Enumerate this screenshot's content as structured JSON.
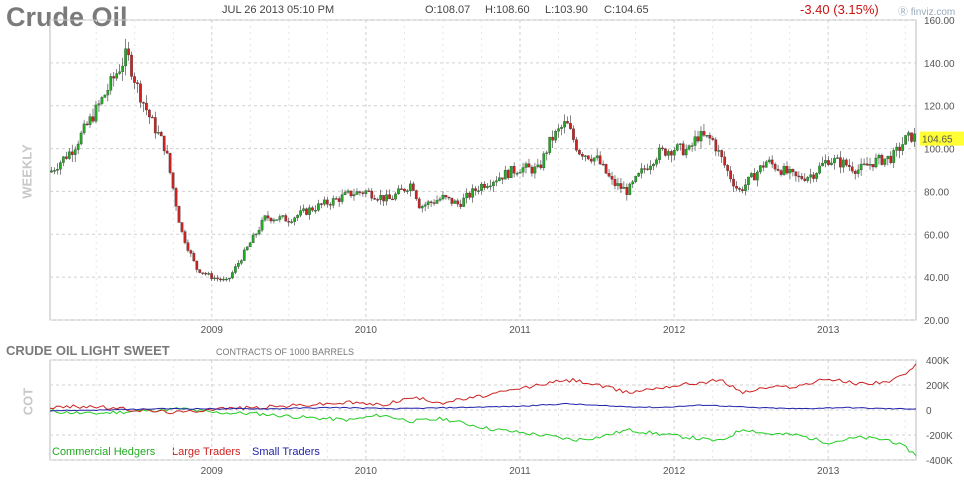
{
  "header": {
    "title": "Crude Oil",
    "datetime": "JUL 26 2013 05:10 PM",
    "open": "O:108.07",
    "high": "H:108.60",
    "low": "L:103.90",
    "close": "C:104.65",
    "change": "-3.40 (3.15%)",
    "brand": "finviz.com"
  },
  "colors": {
    "up": "#22aa22",
    "down": "#cc2222",
    "commercial": "#22cc22",
    "large": "#cc2222",
    "small": "#2222aa",
    "grid": "#d0d0d0",
    "last_bg": "#ffff33"
  },
  "chart_data": [
    {
      "type": "candlestick",
      "period_label": "WEEKLY",
      "last_label": "104.65",
      "ylim": [
        20,
        160
      ],
      "y_ticks": [
        "160.00",
        "140.00",
        "120.00",
        "100.00",
        "80.00",
        "60.00",
        "40.00",
        "20.00"
      ],
      "x_ticks": [
        "2009",
        "2010",
        "2011",
        "2012",
        "2013"
      ],
      "x_range": [
        2007.95,
        2013.57
      ],
      "price_path": [
        [
          2007.95,
          89
        ],
        [
          2008.1,
          100
        ],
        [
          2008.25,
          118
        ],
        [
          2008.38,
          135
        ],
        [
          2008.45,
          144
        ],
        [
          2008.52,
          128
        ],
        [
          2008.6,
          114
        ],
        [
          2008.7,
          100
        ],
        [
          2008.8,
          62
        ],
        [
          2008.9,
          44
        ],
        [
          2009.0,
          40
        ],
        [
          2009.1,
          38
        ],
        [
          2009.2,
          50
        ],
        [
          2009.35,
          68
        ],
        [
          2009.5,
          67
        ],
        [
          2009.65,
          72
        ],
        [
          2009.8,
          76
        ],
        [
          2009.9,
          79
        ],
        [
          2010.0,
          80
        ],
        [
          2010.15,
          76
        ],
        [
          2010.3,
          84
        ],
        [
          2010.35,
          73
        ],
        [
          2010.5,
          77
        ],
        [
          2010.6,
          74
        ],
        [
          2010.75,
          83
        ],
        [
          2010.9,
          88
        ],
        [
          2011.0,
          91
        ],
        [
          2011.12,
          90
        ],
        [
          2011.2,
          104
        ],
        [
          2011.3,
          112
        ],
        [
          2011.38,
          99
        ],
        [
          2011.5,
          95
        ],
        [
          2011.6,
          84
        ],
        [
          2011.7,
          80
        ],
        [
          2011.8,
          90
        ],
        [
          2011.9,
          98
        ],
        [
          2012.0,
          100
        ],
        [
          2012.1,
          99
        ],
        [
          2012.15,
          106
        ],
        [
          2012.25,
          104
        ],
        [
          2012.35,
          89
        ],
        [
          2012.42,
          80
        ],
        [
          2012.5,
          86
        ],
        [
          2012.6,
          94
        ],
        [
          2012.7,
          90
        ],
        [
          2012.8,
          86
        ],
        [
          2012.9,
          88
        ],
        [
          2013.0,
          95
        ],
        [
          2013.1,
          93
        ],
        [
          2013.2,
          90
        ],
        [
          2013.3,
          94
        ],
        [
          2013.42,
          96
        ],
        [
          2013.5,
          104
        ],
        [
          2013.55,
          106
        ],
        [
          2013.57,
          104.65
        ]
      ]
    },
    {
      "type": "line",
      "title": "CRUDE OIL LIGHT SWEET",
      "note": "CONTRACTS OF 1000 BARRELS",
      "label": "COT",
      "ylim": [
        -400000,
        400000
      ],
      "y_ticks": [
        "400K",
        "200K",
        "0",
        "-200K",
        "-400K"
      ],
      "y_tick_values": [
        400000,
        200000,
        0,
        -200000,
        -400000
      ],
      "x_ticks": [
        "2009",
        "2010",
        "2011",
        "2012",
        "2013"
      ],
      "series": [
        {
          "name": "Commercial Hedgers",
          "points": [
            [
              2007.95,
              -10000
            ],
            [
              2008.2,
              -30000
            ],
            [
              2008.5,
              -10000
            ],
            [
              2008.8,
              10000
            ],
            [
              2009.0,
              -20000
            ],
            [
              2009.3,
              -30000
            ],
            [
              2009.6,
              -60000
            ],
            [
              2009.9,
              -80000
            ],
            [
              2010.1,
              -40000
            ],
            [
              2010.3,
              -90000
            ],
            [
              2010.5,
              -70000
            ],
            [
              2010.8,
              -150000
            ],
            [
              2011.0,
              -180000
            ],
            [
              2011.2,
              -210000
            ],
            [
              2011.35,
              -240000
            ],
            [
              2011.5,
              -220000
            ],
            [
              2011.7,
              -160000
            ],
            [
              2011.9,
              -190000
            ],
            [
              2012.1,
              -220000
            ],
            [
              2012.3,
              -250000
            ],
            [
              2012.45,
              -150000
            ],
            [
              2012.6,
              -190000
            ],
            [
              2012.8,
              -200000
            ],
            [
              2013.0,
              -260000
            ],
            [
              2013.2,
              -220000
            ],
            [
              2013.4,
              -240000
            ],
            [
              2013.5,
              -300000
            ],
            [
              2013.57,
              -360000
            ]
          ]
        },
        {
          "name": "Large Traders",
          "points": [
            [
              2007.95,
              20000
            ],
            [
              2008.2,
              30000
            ],
            [
              2008.5,
              0
            ],
            [
              2008.8,
              -20000
            ],
            [
              2009.0,
              10000
            ],
            [
              2009.3,
              20000
            ],
            [
              2009.6,
              40000
            ],
            [
              2009.9,
              60000
            ],
            [
              2010.1,
              40000
            ],
            [
              2010.3,
              100000
            ],
            [
              2010.5,
              60000
            ],
            [
              2010.8,
              120000
            ],
            [
              2011.0,
              170000
            ],
            [
              2011.2,
              220000
            ],
            [
              2011.35,
              240000
            ],
            [
              2011.5,
              200000
            ],
            [
              2011.7,
              140000
            ],
            [
              2011.9,
              180000
            ],
            [
              2012.1,
              210000
            ],
            [
              2012.3,
              240000
            ],
            [
              2012.45,
              140000
            ],
            [
              2012.6,
              180000
            ],
            [
              2012.8,
              190000
            ],
            [
              2013.0,
              250000
            ],
            [
              2013.2,
              210000
            ],
            [
              2013.4,
              230000
            ],
            [
              2013.5,
              280000
            ],
            [
              2013.57,
              360000
            ]
          ]
        },
        {
          "name": "Small Traders",
          "points": [
            [
              2007.95,
              -5000
            ],
            [
              2008.3,
              0
            ],
            [
              2008.7,
              10000
            ],
            [
              2009.0,
              10000
            ],
            [
              2009.4,
              10000
            ],
            [
              2009.8,
              20000
            ],
            [
              2010.2,
              10000
            ],
            [
              2010.6,
              20000
            ],
            [
              2011.0,
              30000
            ],
            [
              2011.3,
              50000
            ],
            [
              2011.6,
              30000
            ],
            [
              2011.9,
              20000
            ],
            [
              2012.2,
              40000
            ],
            [
              2012.5,
              20000
            ],
            [
              2012.8,
              10000
            ],
            [
              2013.1,
              20000
            ],
            [
              2013.4,
              10000
            ],
            [
              2013.57,
              10000
            ]
          ]
        }
      ]
    }
  ]
}
